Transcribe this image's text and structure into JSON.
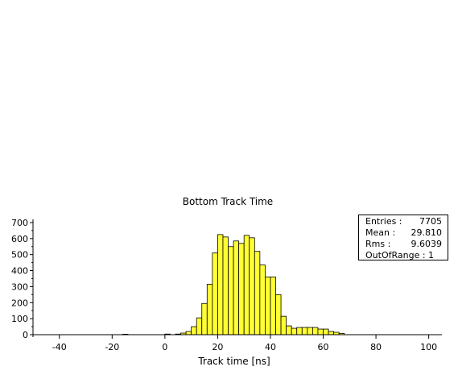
{
  "chart_data": {
    "type": "bar",
    "title": "Bottom Track Time",
    "xlabel": "Track time [ns]",
    "ylabel": "",
    "xlim": [
      -50,
      105
    ],
    "ylim": [
      0,
      720
    ],
    "bin_width": 2,
    "x_ticks": [
      -40,
      -20,
      0,
      20,
      40,
      60,
      80,
      100
    ],
    "y_ticks": [
      0,
      100,
      200,
      300,
      400,
      500,
      600,
      700
    ],
    "bar_fill": "#ffff33",
    "bar_stroke": "#000000",
    "bins": [
      {
        "x0": -16,
        "value": 3
      },
      {
        "x0": 0,
        "value": 4
      },
      {
        "x0": 4,
        "value": 4
      },
      {
        "x0": 6,
        "value": 10
      },
      {
        "x0": 8,
        "value": 20
      },
      {
        "x0": 10,
        "value": 50
      },
      {
        "x0": 12,
        "value": 105
      },
      {
        "x0": 14,
        "value": 195
      },
      {
        "x0": 16,
        "value": 315
      },
      {
        "x0": 18,
        "value": 510
      },
      {
        "x0": 20,
        "value": 625
      },
      {
        "x0": 22,
        "value": 610
      },
      {
        "x0": 24,
        "value": 550
      },
      {
        "x0": 26,
        "value": 585
      },
      {
        "x0": 28,
        "value": 570
      },
      {
        "x0": 30,
        "value": 620
      },
      {
        "x0": 32,
        "value": 605
      },
      {
        "x0": 34,
        "value": 520
      },
      {
        "x0": 36,
        "value": 435
      },
      {
        "x0": 38,
        "value": 360
      },
      {
        "x0": 40,
        "value": 360
      },
      {
        "x0": 42,
        "value": 250
      },
      {
        "x0": 44,
        "value": 115
      },
      {
        "x0": 46,
        "value": 55
      },
      {
        "x0": 48,
        "value": 40
      },
      {
        "x0": 50,
        "value": 45
      },
      {
        "x0": 52,
        "value": 45
      },
      {
        "x0": 54,
        "value": 45
      },
      {
        "x0": 56,
        "value": 45
      },
      {
        "x0": 58,
        "value": 35
      },
      {
        "x0": 60,
        "value": 35
      },
      {
        "x0": 62,
        "value": 20
      },
      {
        "x0": 64,
        "value": 15
      },
      {
        "x0": 66,
        "value": 8
      }
    ]
  },
  "stats": {
    "entries_label": "Entries :",
    "entries_value": "7705",
    "mean_label": "Mean :",
    "mean_value": "29.810",
    "rms_label": "Rms :",
    "rms_value": "9.6039",
    "out_of_range": "OutOfRange : 1"
  }
}
